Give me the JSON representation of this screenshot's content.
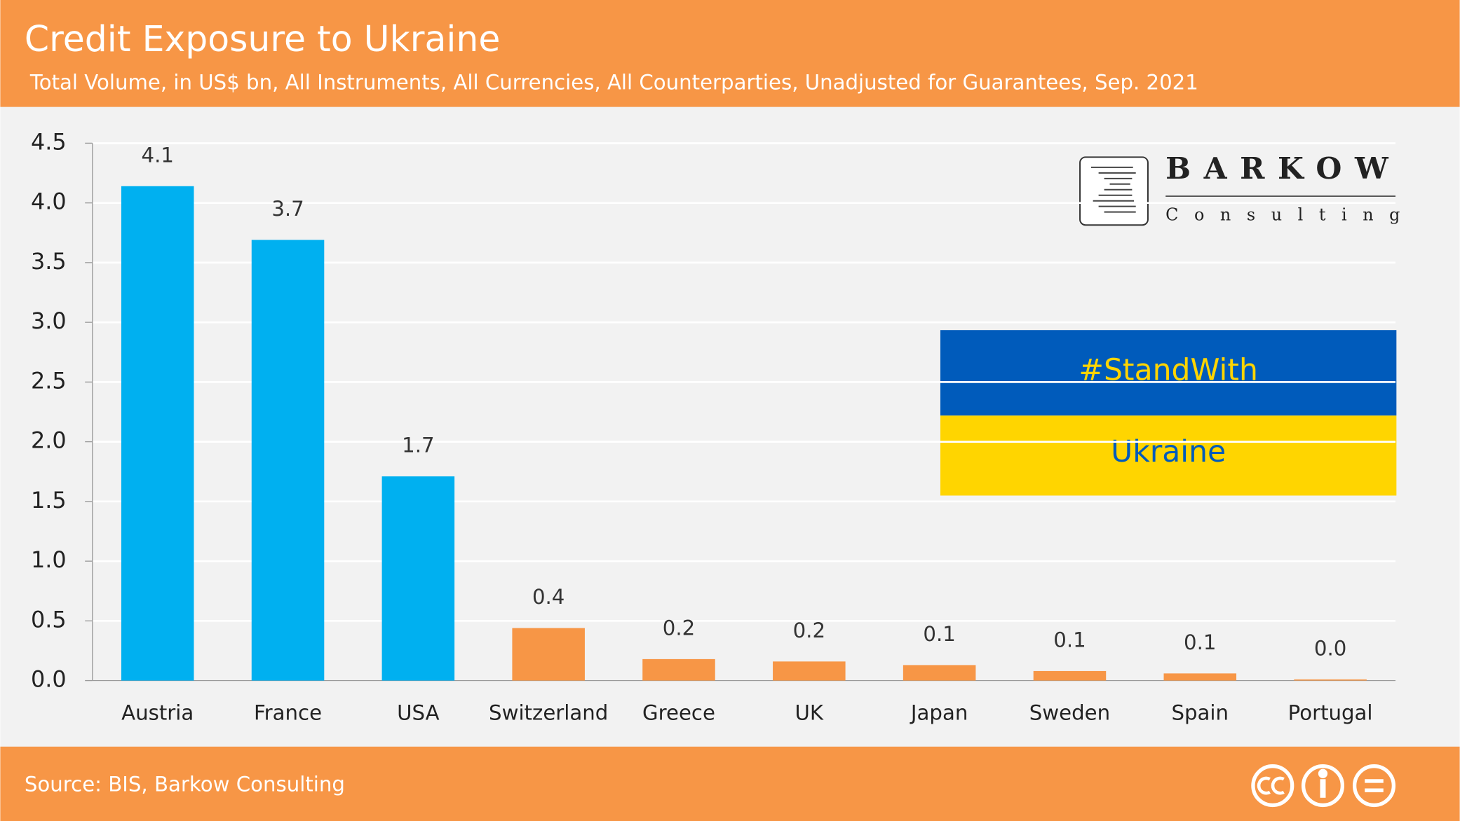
{
  "chart_data": {
    "type": "bar",
    "title": "Credit Exposure to Ukraine",
    "subtitle": "Total Volume, in US$ bn, All Instruments, All Currencies, All Counterparties, Unadjusted for Guarantees, Sep. 2021",
    "categories": [
      "Austria",
      "France",
      "USA",
      "Switzerland",
      "Greece",
      "UK",
      "Japan",
      "Sweden",
      "Spain",
      "Portugal"
    ],
    "values": [
      4.14,
      3.69,
      1.71,
      0.44,
      0.18,
      0.16,
      0.13,
      0.08,
      0.06,
      0.01
    ],
    "value_labels": [
      "4.1",
      "3.7",
      "1.7",
      "0.4",
      "0.2",
      "0.2",
      "0.1",
      "0.1",
      "0.1",
      "0.0"
    ],
    "colors": [
      "#00b0f0",
      "#00b0f0",
      "#00b0f0",
      "#f79646",
      "#f79646",
      "#f79646",
      "#f79646",
      "#f79646",
      "#f79646",
      "#f79646"
    ],
    "ylim": [
      0,
      4.5
    ],
    "yticks": [
      {
        "value": 0,
        "label": "0.0"
      },
      0.5,
      {
        "value": 1,
        "label": "1.0"
      },
      1.5,
      {
        "value": 2,
        "label": "2.0"
      },
      2.5,
      {
        "value": 3,
        "label": "3.0"
      },
      3.5,
      {
        "value": 4,
        "label": "4.0"
      },
      4.5
    ],
    "grid": true,
    "logo": {
      "name": "BARKOW",
      "tagline": "Consulting"
    },
    "banner": {
      "top": "#StandWith",
      "bottom": "Ukraine"
    },
    "source": "Source: BIS, Barkow Consulting"
  }
}
